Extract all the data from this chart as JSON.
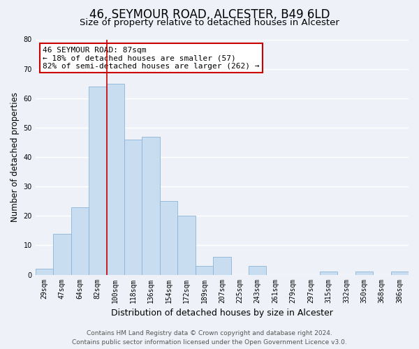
{
  "title": "46, SEYMOUR ROAD, ALCESTER, B49 6LD",
  "subtitle": "Size of property relative to detached houses in Alcester",
  "xlabel": "Distribution of detached houses by size in Alcester",
  "ylabel": "Number of detached properties",
  "bar_color": "#c9ddf0",
  "bar_edge_color": "#8ab4d8",
  "categories": [
    "29sqm",
    "47sqm",
    "64sqm",
    "82sqm",
    "100sqm",
    "118sqm",
    "136sqm",
    "154sqm",
    "172sqm",
    "189sqm",
    "207sqm",
    "225sqm",
    "243sqm",
    "261sqm",
    "279sqm",
    "297sqm",
    "315sqm",
    "332sqm",
    "350sqm",
    "368sqm",
    "386sqm"
  ],
  "values": [
    2,
    14,
    23,
    64,
    65,
    46,
    47,
    25,
    20,
    3,
    6,
    0,
    3,
    0,
    0,
    0,
    1,
    0,
    1,
    0,
    1
  ],
  "ylim": [
    0,
    80
  ],
  "yticks": [
    0,
    10,
    20,
    30,
    40,
    50,
    60,
    70,
    80
  ],
  "property_line_x": 3.5,
  "property_line_label": "46 SEYMOUR ROAD: 87sqm",
  "annotation_smaller": "← 18% of detached houses are smaller (57)",
  "annotation_larger": "82% of semi-detached houses are larger (262) →",
  "annotation_box_facecolor": "#ffffff",
  "annotation_box_edgecolor": "#cc0000",
  "footer_line1": "Contains HM Land Registry data © Crown copyright and database right 2024.",
  "footer_line2": "Contains public sector information licensed under the Open Government Licence v3.0.",
  "background_color": "#eef2f8",
  "grid_color": "#ffffff",
  "title_fontsize": 12,
  "subtitle_fontsize": 9.5,
  "ylabel_fontsize": 8.5,
  "xlabel_fontsize": 9,
  "tick_fontsize": 7,
  "annotation_fontsize": 8,
  "footer_fontsize": 6.5
}
